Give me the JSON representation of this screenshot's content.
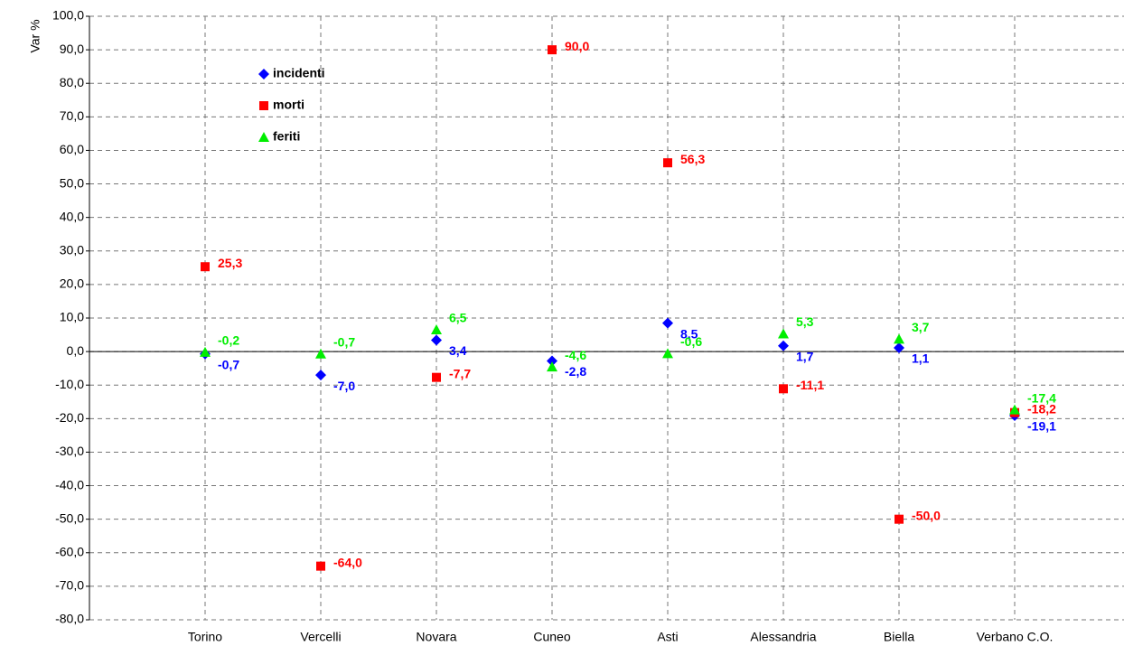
{
  "chart_data": {
    "type": "scatter",
    "y_label": "Var %",
    "categories": [
      "Torino",
      "Vercelli",
      "Novara",
      "Cuneo",
      "Asti",
      "Alessandria",
      "Biella",
      "Verbano C.O."
    ],
    "series": [
      {
        "name": "incidenti",
        "color": "#0000ff",
        "marker": "diamond",
        "values": [
          -0.7,
          -7.0,
          3.4,
          -2.8,
          8.5,
          1.7,
          1.1,
          -19.1
        ],
        "value_labels": [
          "-0,7",
          "-7,0",
          "3,4",
          "-2,8",
          "8,5",
          "1,7",
          "1,1",
          "-19,1"
        ]
      },
      {
        "name": "morti",
        "color": "#ff0000",
        "marker": "square",
        "values": [
          25.3,
          -64.0,
          -7.7,
          90.0,
          56.3,
          -11.1,
          -50.0,
          -18.2
        ],
        "value_labels": [
          "25,3",
          "-64,0",
          "-7,7",
          "90,0",
          "56,3",
          "-11,1",
          "-50,0",
          "-18,2"
        ]
      },
      {
        "name": "feriti",
        "color": "#00ee00",
        "marker": "triangle",
        "values": [
          -0.2,
          -0.7,
          6.5,
          -4.6,
          -0.6,
          5.3,
          3.7,
          -17.4
        ],
        "value_labels": [
          "-0,2",
          "-0,7",
          "6,5",
          "-4,6",
          "-0,6",
          "5,3",
          "3,7",
          "-17,4"
        ]
      }
    ],
    "ylim": [
      -80,
      100
    ],
    "yticks": [
      {
        "value": -80,
        "label": "-80,0"
      },
      {
        "value": -70,
        "label": "-70,0"
      },
      {
        "value": -60,
        "label": "-60,0"
      },
      {
        "value": -50,
        "label": "-50,0"
      },
      {
        "value": -40,
        "label": "-40,0"
      },
      {
        "value": -30,
        "label": "-30,0"
      },
      {
        "value": -20,
        "label": "-20,0"
      },
      {
        "value": -10,
        "label": "-10,0"
      },
      {
        "value": 0,
        "label": "0,0"
      },
      {
        "value": 10,
        "label": "10,0"
      },
      {
        "value": 20,
        "label": "20,0"
      },
      {
        "value": 30,
        "label": "30,0"
      },
      {
        "value": 40,
        "label": "40,0"
      },
      {
        "value": 50,
        "label": "50,0"
      },
      {
        "value": 60,
        "label": "60,0"
      },
      {
        "value": 70,
        "label": "70,0"
      },
      {
        "value": 80,
        "label": "80,0"
      },
      {
        "value": 90,
        "label": "90,0"
      },
      {
        "value": 100,
        "label": "100,0"
      }
    ],
    "grid": true,
    "legend": "upper left"
  }
}
